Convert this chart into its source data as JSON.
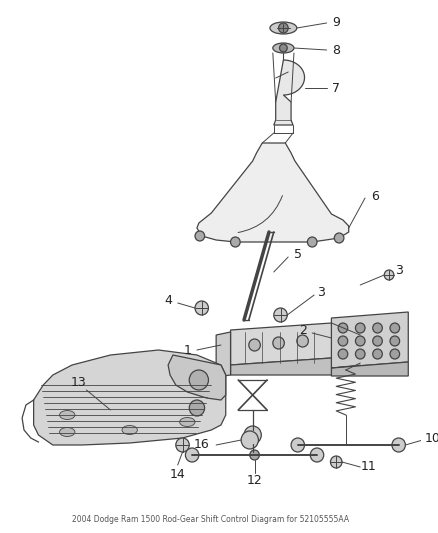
{
  "background_color": "#ffffff",
  "line_color": "#444444",
  "label_color": "#222222",
  "title": "2004 Dodge Ram 1500 Rod-Gear Shift Control Diagram for 52105555AA"
}
